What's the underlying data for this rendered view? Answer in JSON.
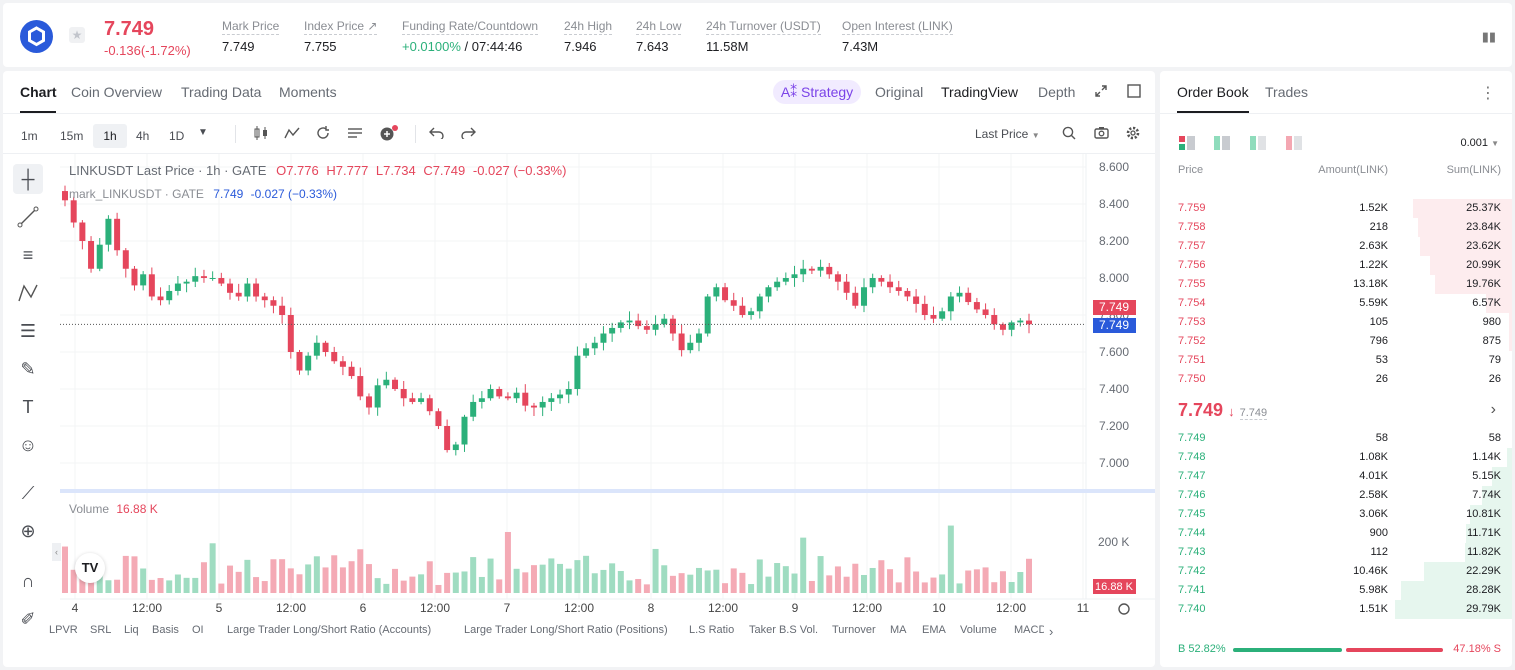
{
  "header": {
    "price": "7.749",
    "change": "-0.136(-1.72%)",
    "stats": [
      {
        "label": "Mark Price",
        "value": "7.749"
      },
      {
        "label": "Index Price ↗",
        "value": "7.755"
      },
      {
        "label": "Funding Rate/Countdown",
        "value_green": "+0.0100%",
        "value_rest": " / 07:44:46"
      },
      {
        "label": "24h High",
        "value": "7.946"
      },
      {
        "label": "24h Low",
        "value": "7.643"
      },
      {
        "label": "24h Turnover (USDT)",
        "value": "11.58M"
      },
      {
        "label": "Open Interest (LINK)",
        "value": "7.43M"
      }
    ]
  },
  "chart_panel": {
    "tabs": [
      "Chart",
      "Coin Overview",
      "Trading Data",
      "Moments"
    ],
    "strategy": "A⁑ Strategy",
    "views": [
      "Original",
      "TradingView",
      "Depth"
    ],
    "timeframes": [
      "1m",
      "15m",
      "1h",
      "4h",
      "1D"
    ],
    "price_type": "Last Price",
    "legend": {
      "title": "LINKUSDT Last Price · 1h · GATE",
      "o": "O7.776",
      "h": "H7.777",
      "l": "L7.734",
      "c": "C7.749",
      "chg": "-0.027 (−0.33%)",
      "mark_name": "mark_LINKUSDT · GATE",
      "mark_val": "7.749",
      "mark_chg": "-0.027 (−0.33%)"
    },
    "volume_label": "Volume",
    "volume_value": "16.88 K",
    "volume_tag": "16.88 K",
    "vol_axis": "200 K",
    "last_tag": "7.749",
    "mark_tag": "7.749",
    "indicators": [
      "LPVR",
      "SRL",
      "Liq",
      "Basis",
      "OI",
      "Large Trader Long/Short Ratio (Accounts)",
      "Large Trader Long/Short Ratio (Positions)",
      "L.S Ratio",
      "Taker B.S Vol.",
      "Turnover",
      "MA",
      "EMA",
      "Volume",
      "MACD"
    ]
  },
  "chart_data": {
    "type": "candlestick",
    "y_ticks": [
      "8.600",
      "8.400",
      "8.200",
      "8.000",
      "7.800",
      "7.600",
      "7.400",
      "7.200",
      "7.000"
    ],
    "x_ticks": [
      "4",
      "12:00",
      "5",
      "12:00",
      "6",
      "12:00",
      "7",
      "12:00",
      "8",
      "12:00",
      "9",
      "12:00",
      "10",
      "12:00",
      "11"
    ],
    "close_path": [
      8.42,
      8.3,
      8.2,
      8.05,
      8.18,
      8.32,
      8.15,
      8.05,
      7.96,
      8.02,
      7.9,
      7.88,
      7.93,
      7.97,
      7.98,
      8.01,
      8.0,
      8.0,
      7.97,
      7.92,
      7.9,
      7.97,
      7.9,
      7.88,
      7.85,
      7.8,
      7.6,
      7.5,
      7.58,
      7.65,
      7.6,
      7.55,
      7.52,
      7.47,
      7.36,
      7.3,
      7.42,
      7.45,
      7.4,
      7.35,
      7.33,
      7.35,
      7.28,
      7.2,
      7.07,
      7.1,
      7.25,
      7.33,
      7.35,
      7.4,
      7.36,
      7.35,
      7.38,
      7.31,
      7.3,
      7.33,
      7.35,
      7.37,
      7.4,
      7.58,
      7.62,
      7.65,
      7.7,
      7.73,
      7.76,
      7.77,
      7.74,
      7.72,
      7.75,
      7.78,
      7.7,
      7.61,
      7.65,
      7.7,
      7.9,
      7.95,
      7.88,
      7.85,
      7.8,
      7.82,
      7.9,
      7.95,
      7.98,
      8.0,
      8.02,
      8.05,
      8.04,
      8.06,
      8.02,
      7.98,
      7.92,
      7.85,
      7.95,
      8.0,
      7.98,
      7.95,
      7.93,
      7.9,
      7.86,
      7.8,
      7.78,
      7.82,
      7.9,
      7.92,
      7.87,
      7.83,
      7.8,
      7.75,
      7.72,
      7.76,
      7.77,
      7.75
    ]
  },
  "orderbook": {
    "tabs": [
      "Order Book",
      "Trades"
    ],
    "precision": "0.001",
    "headers": [
      "Price",
      "Amount(LINK)",
      "Sum(LINK)"
    ],
    "asks": [
      {
        "p": "7.759",
        "a": "1.52K",
        "s": "25.37K",
        "d": 0.85
      },
      {
        "p": "7.758",
        "a": "218",
        "s": "23.84K",
        "d": 0.8
      },
      {
        "p": "7.757",
        "a": "2.63K",
        "s": "23.62K",
        "d": 0.79
      },
      {
        "p": "7.756",
        "a": "1.22K",
        "s": "20.99K",
        "d": 0.7
      },
      {
        "p": "7.755",
        "a": "13.18K",
        "s": "19.76K",
        "d": 0.66
      },
      {
        "p": "7.754",
        "a": "5.59K",
        "s": "6.57K",
        "d": 0.22
      },
      {
        "p": "7.753",
        "a": "105",
        "s": "980",
        "d": 0.03
      },
      {
        "p": "7.752",
        "a": "796",
        "s": "875",
        "d": 0.03
      },
      {
        "p": "7.751",
        "a": "53",
        "s": "79",
        "d": 0.003
      },
      {
        "p": "7.750",
        "a": "26",
        "s": "26",
        "d": 0.001
      }
    ],
    "mid_price": "7.749",
    "mid_mark": "7.749",
    "bids": [
      {
        "p": "7.749",
        "a": "58",
        "s": "58",
        "d": 0.002
      },
      {
        "p": "7.748",
        "a": "1.08K",
        "s": "1.14K",
        "d": 0.04
      },
      {
        "p": "7.747",
        "a": "4.01K",
        "s": "5.15K",
        "d": 0.17
      },
      {
        "p": "7.746",
        "a": "2.58K",
        "s": "7.74K",
        "d": 0.26
      },
      {
        "p": "7.745",
        "a": "3.06K",
        "s": "10.81K",
        "d": 0.36
      },
      {
        "p": "7.744",
        "a": "900",
        "s": "11.71K",
        "d": 0.39
      },
      {
        "p": "7.743",
        "a": "112",
        "s": "11.82K",
        "d": 0.4
      },
      {
        "p": "7.742",
        "a": "10.46K",
        "s": "22.29K",
        "d": 0.75
      },
      {
        "p": "7.741",
        "a": "5.98K",
        "s": "28.28K",
        "d": 0.95
      },
      {
        "p": "7.740",
        "a": "1.51K",
        "s": "29.79K",
        "d": 1.0
      }
    ],
    "buy_pct": "B 52.82%",
    "sell_pct": "47.18% S",
    "buy_ratio": 0.5282
  },
  "colors": {
    "up": "#2bb07a",
    "down": "#e5465c",
    "accent": "#7b43e8"
  }
}
